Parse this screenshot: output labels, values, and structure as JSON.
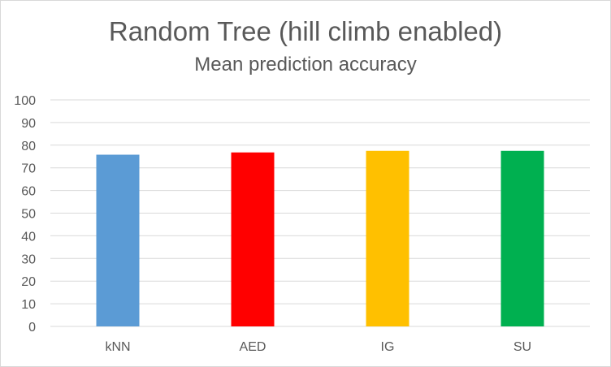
{
  "chart_data": {
    "type": "bar",
    "title": "Random Tree (hill climb enabled)",
    "subtitle": "Mean prediction accuracy",
    "categories": [
      "kNN",
      "AED",
      "IG",
      "SU"
    ],
    "values": [
      75.8,
      76.8,
      77.5,
      77.5
    ],
    "colors": [
      "#5b9bd5",
      "#ff0000",
      "#ffc000",
      "#00b050"
    ],
    "ylim": [
      0,
      100
    ],
    "yticks": [
      "0",
      "10",
      "20",
      "30",
      "40",
      "50",
      "60",
      "70",
      "80",
      "90",
      "100"
    ],
    "grid": true,
    "gridColor": "#d9d9d9",
    "legend": "none"
  }
}
